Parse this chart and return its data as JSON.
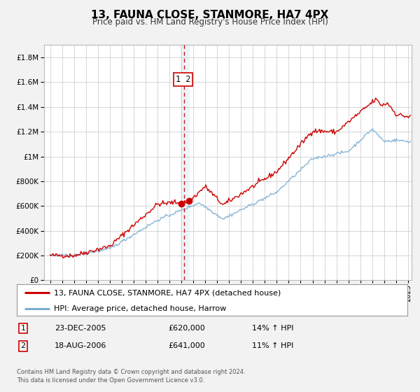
{
  "title": "13, FAUNA CLOSE, STANMORE, HA7 4PX",
  "subtitle": "Price paid vs. HM Land Registry's House Price Index (HPI)",
  "legend_line1": "13, FAUNA CLOSE, STANMORE, HA7 4PX (detached house)",
  "legend_line2": "HPI: Average price, detached house, Harrow",
  "red_color": "#cc0000",
  "blue_color": "#7bafd4",
  "annotation_box_color": "#cc0000",
  "sale1_date": 2005.975,
  "sale1_price": 620000,
  "sale1_label": "1",
  "sale1_text": "23-DEC-2005",
  "sale1_amount": "£620,000",
  "sale1_hpi": "14% ↑ HPI",
  "sale2_date": 2006.63,
  "sale2_price": 641000,
  "sale2_label": "2",
  "sale2_text": "18-AUG-2006",
  "sale2_amount": "£641,000",
  "sale2_hpi": "11% ↑ HPI",
  "vline_x": 2006.25,
  "ylim_max": 1900000,
  "ylim_min": 0,
  "xlim_min": 1994.5,
  "xlim_max": 2025.3,
  "footer": "Contains HM Land Registry data © Crown copyright and database right 2024.\nThis data is licensed under the Open Government Licence v3.0.",
  "background_color": "#f2f2f2",
  "plot_bg_color": "#ffffff",
  "grid_color": "#d0d0d0"
}
